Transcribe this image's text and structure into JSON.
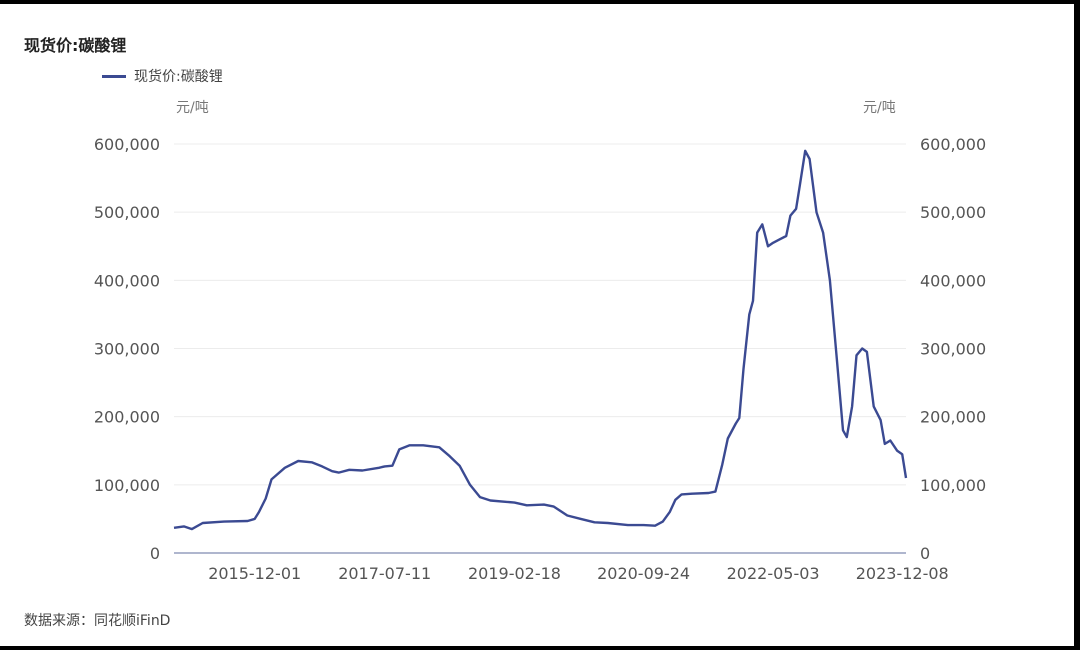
{
  "chart_title": "现货价:碳酸锂",
  "source_text": "数据来源：同花顺iFinD",
  "colors": {
    "line": "#3b4a92",
    "grid": "#ececec",
    "axis": "#7f8ab0"
  },
  "chart_data": {
    "type": "line",
    "title": "现货价:碳酸锂",
    "legend": [
      "现货价:碳酸锂"
    ],
    "legend_position": "top-left",
    "y_unit_left": "元/吨",
    "y_unit_right": "元/吨",
    "ylim": [
      0,
      600000
    ],
    "y_ticks": [
      0,
      100000,
      200000,
      300000,
      400000,
      500000,
      600000
    ],
    "y_tick_labels": [
      "0",
      "100,000",
      "200,000",
      "300,000",
      "400,000",
      "500,000",
      "600,000"
    ],
    "x_tick_labels": [
      "2015-12-01",
      "2017-07-11",
      "2019-02-18",
      "2020-09-24",
      "2022-05-03",
      "2023-12-08"
    ],
    "grid": true,
    "series": [
      {
        "name": "现货价:碳酸锂",
        "points": [
          [
            "2014-12-01",
            37000
          ],
          [
            "2015-01-15",
            39000
          ],
          [
            "2015-02-20",
            35000
          ],
          [
            "2015-04-10",
            44000
          ],
          [
            "2015-07-15",
            46000
          ],
          [
            "2015-10-30",
            47000
          ],
          [
            "2015-12-01",
            50000
          ],
          [
            "2015-12-20",
            60000
          ],
          [
            "2016-01-20",
            80000
          ],
          [
            "2016-02-15",
            108000
          ],
          [
            "2016-04-15",
            125000
          ],
          [
            "2016-06-15",
            135000
          ],
          [
            "2016-08-15",
            133000
          ],
          [
            "2016-10-01",
            127000
          ],
          [
            "2016-11-15",
            120000
          ],
          [
            "2016-12-15",
            118000
          ],
          [
            "2017-02-01",
            122000
          ],
          [
            "2017-04-01",
            121000
          ],
          [
            "2017-06-15",
            125000
          ],
          [
            "2017-07-11",
            127000
          ],
          [
            "2017-08-15",
            128000
          ],
          [
            "2017-09-15",
            152000
          ],
          [
            "2017-11-01",
            158000
          ],
          [
            "2018-01-01",
            158000
          ],
          [
            "2018-03-15",
            155000
          ],
          [
            "2018-05-01",
            142000
          ],
          [
            "2018-06-15",
            128000
          ],
          [
            "2018-08-01",
            100000
          ],
          [
            "2018-09-15",
            82000
          ],
          [
            "2018-11-01",
            77000
          ],
          [
            "2019-01-15",
            75000
          ],
          [
            "2019-02-18",
            74000
          ],
          [
            "2019-04-15",
            70000
          ],
          [
            "2019-07-01",
            71000
          ],
          [
            "2019-08-15",
            68000
          ],
          [
            "2019-10-15",
            55000
          ],
          [
            "2019-12-15",
            50000
          ],
          [
            "2020-02-15",
            45000
          ],
          [
            "2020-04-15",
            44000
          ],
          [
            "2020-07-15",
            41000
          ],
          [
            "2020-09-24",
            41000
          ],
          [
            "2020-11-15",
            40000
          ],
          [
            "2020-12-20",
            46000
          ],
          [
            "2021-01-20",
            60000
          ],
          [
            "2021-02-15",
            78000
          ],
          [
            "2021-03-15",
            86000
          ],
          [
            "2021-05-01",
            87000
          ],
          [
            "2021-07-15",
            88000
          ],
          [
            "2021-08-15",
            90000
          ],
          [
            "2021-09-15",
            130000
          ],
          [
            "2021-10-10",
            168000
          ],
          [
            "2021-11-15",
            190000
          ],
          [
            "2021-12-01",
            198000
          ],
          [
            "2021-12-20",
            270000
          ],
          [
            "2022-01-15",
            350000
          ],
          [
            "2022-02-01",
            370000
          ],
          [
            "2022-02-20",
            470000
          ],
          [
            "2022-03-15",
            482000
          ],
          [
            "2022-04-10",
            450000
          ],
          [
            "2022-05-03",
            455000
          ],
          [
            "2022-06-01",
            460000
          ],
          [
            "2022-07-01",
            465000
          ],
          [
            "2022-07-20",
            495000
          ],
          [
            "2022-08-15",
            505000
          ],
          [
            "2022-09-01",
            540000
          ],
          [
            "2022-09-25",
            590000
          ],
          [
            "2022-10-15",
            578000
          ],
          [
            "2022-11-15",
            500000
          ],
          [
            "2022-12-15",
            470000
          ],
          [
            "2023-01-15",
            400000
          ],
          [
            "2023-02-15",
            285000
          ],
          [
            "2023-03-15",
            180000
          ],
          [
            "2023-04-01",
            170000
          ],
          [
            "2023-04-25",
            215000
          ],
          [
            "2023-05-15",
            290000
          ],
          [
            "2023-06-10",
            300000
          ],
          [
            "2023-07-01",
            295000
          ],
          [
            "2023-08-01",
            215000
          ],
          [
            "2023-09-01",
            195000
          ],
          [
            "2023-09-20",
            160000
          ],
          [
            "2023-10-15",
            165000
          ],
          [
            "2023-11-15",
            150000
          ],
          [
            "2023-12-08",
            145000
          ],
          [
            "2023-12-25",
            110000
          ]
        ]
      }
    ]
  }
}
